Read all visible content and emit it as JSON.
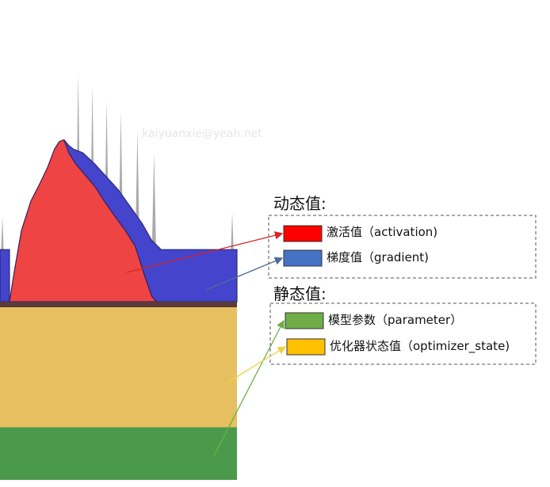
{
  "watermark": "kaiyuanxie@yeah.net",
  "chart_data": {
    "type": "area",
    "title": "",
    "xlabel": "",
    "ylabel": "",
    "grid": false,
    "legend_placement": "right",
    "static_layers": [
      {
        "key": "parameter",
        "value": 0.25,
        "color": "#4b9a4b"
      },
      {
        "key": "optimizer_state",
        "value": 0.57,
        "color": "#e6c060"
      }
    ],
    "boundary_band": {
      "value": 0.02,
      "color": "#5a3a3a"
    },
    "dynamic_series": [
      {
        "key": "gradient",
        "color": "#4444cc",
        "points": [
          [
            0.0,
            0.28
          ],
          [
            0.04,
            0.28
          ],
          [
            0.04,
            0.0
          ],
          [
            0.06,
            0.0
          ],
          [
            0.08,
            0.16
          ],
          [
            0.12,
            0.34
          ],
          [
            0.18,
            0.62
          ],
          [
            0.22,
            0.78
          ],
          [
            0.25,
            0.84
          ],
          [
            0.27,
            0.87
          ],
          [
            0.29,
            0.84
          ],
          [
            0.31,
            0.82
          ],
          [
            0.35,
            0.8
          ],
          [
            0.4,
            0.74
          ],
          [
            0.45,
            0.67
          ],
          [
            0.5,
            0.6
          ],
          [
            0.55,
            0.51
          ],
          [
            0.6,
            0.42
          ],
          [
            0.64,
            0.33
          ],
          [
            0.68,
            0.28
          ],
          [
            0.7,
            0.28
          ],
          [
            0.75,
            0.28
          ],
          [
            0.85,
            0.28
          ],
          [
            0.95,
            0.28
          ],
          [
            1.0,
            0.28
          ]
        ]
      },
      {
        "key": "activation",
        "color": "#ee4444",
        "points": [
          [
            0.04,
            0.0
          ],
          [
            0.06,
            0.16
          ],
          [
            0.09,
            0.38
          ],
          [
            0.13,
            0.54
          ],
          [
            0.17,
            0.64
          ],
          [
            0.2,
            0.72
          ],
          [
            0.23,
            0.82
          ],
          [
            0.25,
            0.86
          ],
          [
            0.27,
            0.87
          ],
          [
            0.29,
            0.8
          ],
          [
            0.32,
            0.74
          ],
          [
            0.36,
            0.68
          ],
          [
            0.4,
            0.62
          ],
          [
            0.44,
            0.54
          ],
          [
            0.49,
            0.45
          ],
          [
            0.53,
            0.38
          ],
          [
            0.57,
            0.3
          ],
          [
            0.61,
            0.14
          ],
          [
            0.64,
            0.03
          ],
          [
            0.66,
            0.0
          ]
        ]
      }
    ],
    "spikes": [
      {
        "x": 0.01,
        "y": 0.46
      },
      {
        "x": 0.33,
        "y": 1.22
      },
      {
        "x": 0.39,
        "y": 1.16
      },
      {
        "x": 0.45,
        "y": 1.08
      },
      {
        "x": 0.51,
        "y": 1.02
      },
      {
        "x": 0.58,
        "y": 0.92
      },
      {
        "x": 0.65,
        "y": 0.8
      },
      {
        "x": 0.98,
        "y": 0.48
      }
    ],
    "spike_color": "#aaaaaa",
    "legend": {
      "dynamic_heading": "动态值:",
      "static_heading": "静态值:",
      "items": [
        {
          "group": "dynamic",
          "label": "激活值（activation)",
          "color": "#ff0000",
          "arrow_color": "#dd2222",
          "target": "activation"
        },
        {
          "group": "dynamic",
          "label": "梯度值（gradient)",
          "color": "#4472c4",
          "arrow_color": "#4a6d95",
          "target": "gradient"
        },
        {
          "group": "static",
          "label": "模型参数（parameter）",
          "color": "#70ad47",
          "arrow_color": "#70ad47",
          "target": "parameter"
        },
        {
          "group": "static",
          "label": "优化器状态值（optimizer_state)",
          "color": "#ffc000",
          "arrow_color": "#f0d040",
          "target": "optimizer_state"
        }
      ]
    }
  }
}
